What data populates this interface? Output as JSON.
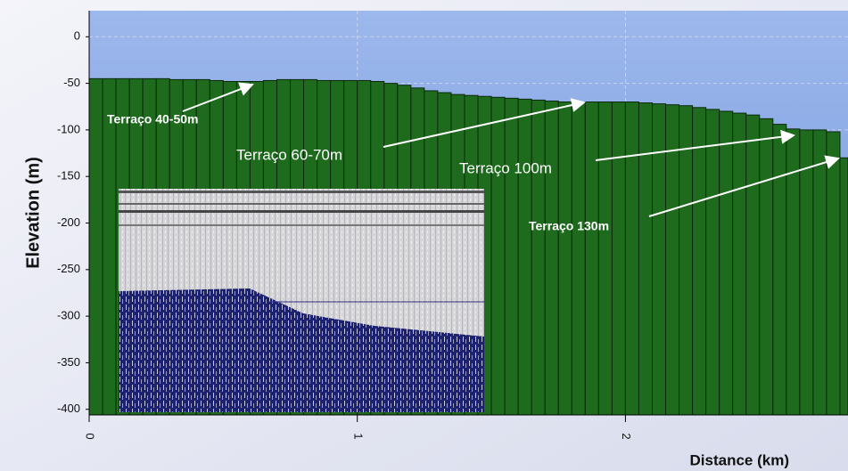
{
  "chart_data": {
    "type": "bar",
    "x_label": "Distance (km)",
    "y_label": "Elevation (m)",
    "x": [
      0,
      0.05,
      0.1,
      0.15,
      0.2,
      0.25,
      0.3,
      0.35,
      0.4,
      0.45,
      0.5,
      0.55,
      0.6,
      0.65,
      0.7,
      0.75,
      0.8,
      0.85,
      0.9,
      0.95,
      1.0,
      1.05,
      1.1,
      1.15,
      1.2,
      1.25,
      1.3,
      1.35,
      1.4,
      1.45,
      1.5,
      1.55,
      1.6,
      1.65,
      1.7,
      1.75,
      1.8,
      1.85,
      1.9,
      1.95,
      2.0,
      2.05,
      2.1,
      2.15,
      2.2,
      2.25,
      2.3,
      2.35,
      2.4,
      2.45,
      2.5,
      2.55,
      2.6,
      2.65,
      2.7,
      2.75,
      2.8
    ],
    "values": [
      -45,
      -45,
      -45,
      -45,
      -45,
      -45,
      -46,
      -46,
      -46,
      -47,
      -48,
      -48,
      -48,
      -47,
      -46,
      -46,
      -46,
      -47,
      -47,
      -47,
      -47,
      -48,
      -50,
      -52,
      -55,
      -58,
      -60,
      -62,
      -63,
      -64,
      -65,
      -66,
      -67,
      -68,
      -69,
      -70,
      -70,
      -70,
      -70,
      -70,
      -70,
      -71,
      -72,
      -73,
      -74,
      -76,
      -78,
      -80,
      -82,
      -84,
      -88,
      -94,
      -99,
      -100,
      -100,
      -102,
      -130
    ],
    "color": "#1e6b1e",
    "xlim": [
      0,
      2.83
    ],
    "xticks": [
      0,
      1,
      2
    ],
    "ylim": [
      -406,
      28
    ],
    "yticks": [
      0,
      -50,
      -100,
      -150,
      -200,
      -250,
      -300,
      -350,
      -400
    ],
    "grid": true,
    "annotations": [
      "Terraço 40-50m",
      "Terraço 60-70m",
      "Terraço 100m",
      "Terraço 130m"
    ]
  }
}
